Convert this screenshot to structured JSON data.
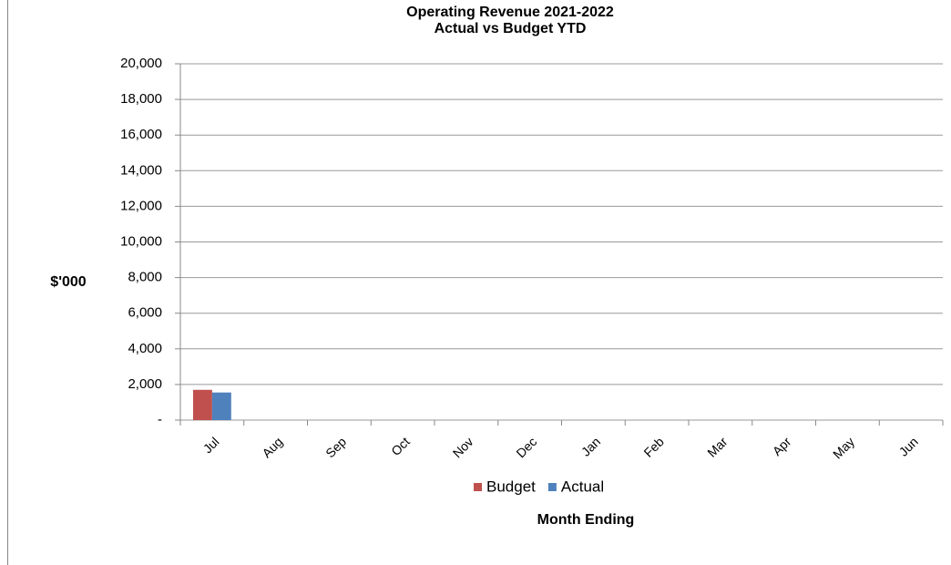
{
  "chart_data": {
    "type": "bar",
    "title": "Operating Revenue 2021-2022",
    "subtitle": "Actual vs Budget YTD",
    "y_label": "$'000",
    "x_label": "Month Ending",
    "categories": [
      "Jul",
      "Aug",
      "Sep",
      "Oct",
      "Nov",
      "Dec",
      "Jan",
      "Feb",
      "Mar",
      "Apr",
      "May",
      "Jun"
    ],
    "series": [
      {
        "name": "Budget",
        "color": "#c0504d",
        "values": [
          1700,
          null,
          null,
          null,
          null,
          null,
          null,
          null,
          null,
          null,
          null,
          null
        ]
      },
      {
        "name": "Actual",
        "color": "#4f81bd",
        "values": [
          1550,
          null,
          null,
          null,
          null,
          null,
          null,
          null,
          null,
          null,
          null,
          null
        ]
      }
    ],
    "ylim": [
      0,
      20000
    ],
    "yticks": [
      {
        "value": 0,
        "label": "-"
      },
      {
        "value": 2000,
        "label": "2,000"
      },
      {
        "value": 4000,
        "label": "4,000"
      },
      {
        "value": 6000,
        "label": "6,000"
      },
      {
        "value": 8000,
        "label": "8,000"
      },
      {
        "value": 10000,
        "label": "10,000"
      },
      {
        "value": 12000,
        "label": "12,000"
      },
      {
        "value": 14000,
        "label": "14,000"
      },
      {
        "value": 16000,
        "label": "16,000"
      },
      {
        "value": 18000,
        "label": "18,000"
      },
      {
        "value": 20000,
        "label": "20,000"
      }
    ],
    "grid": true,
    "legend": "bottom"
  }
}
